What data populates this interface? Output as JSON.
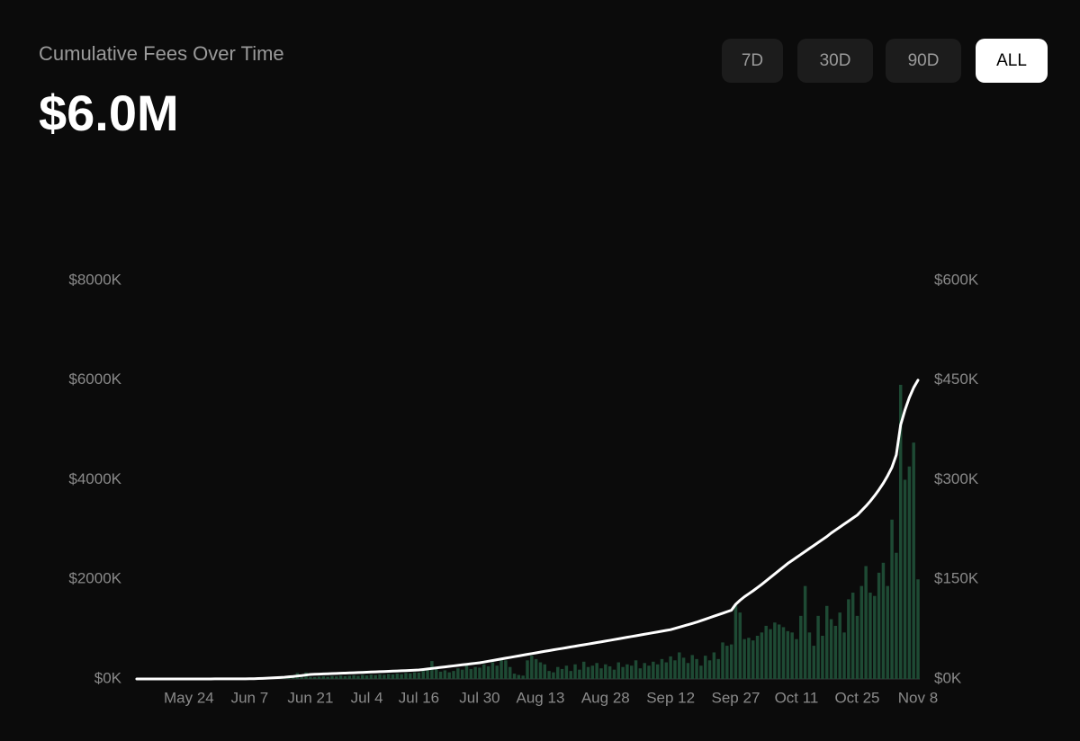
{
  "chart_data": {
    "type": "combo",
    "title": "Cumulative Fees Over Time",
    "headline": "$6.0M",
    "range_buttons": [
      "7D",
      "30D",
      "90D",
      "ALL"
    ],
    "selected_button": 3,
    "grid": false,
    "categories": [
      null,
      null,
      null,
      null,
      null,
      null,
      null,
      null,
      null,
      null,
      null,
      null,
      "May 24",
      null,
      null,
      null,
      null,
      null,
      null,
      null,
      null,
      null,
      null,
      null,
      null,
      null,
      "Jun 7",
      null,
      null,
      null,
      null,
      null,
      null,
      null,
      null,
      null,
      null,
      null,
      null,
      null,
      "Jun 21",
      null,
      null,
      null,
      null,
      null,
      null,
      null,
      null,
      null,
      null,
      null,
      null,
      "Jul 4",
      null,
      null,
      null,
      null,
      null,
      null,
      null,
      null,
      null,
      null,
      null,
      "Jul 16",
      null,
      null,
      null,
      null,
      null,
      null,
      null,
      null,
      null,
      null,
      null,
      null,
      null,
      "Jul 30",
      null,
      null,
      null,
      null,
      null,
      null,
      null,
      null,
      null,
      null,
      null,
      null,
      null,
      "Aug 13",
      null,
      null,
      null,
      null,
      null,
      null,
      null,
      null,
      null,
      null,
      null,
      null,
      null,
      null,
      "Aug 28",
      null,
      null,
      null,
      null,
      null,
      null,
      null,
      null,
      null,
      null,
      null,
      null,
      null,
      null,
      "Sep 12",
      null,
      null,
      null,
      null,
      null,
      null,
      null,
      null,
      null,
      null,
      null,
      null,
      null,
      null,
      "Sep 27",
      null,
      null,
      null,
      null,
      null,
      null,
      null,
      null,
      null,
      null,
      null,
      null,
      null,
      "Oct 11",
      null,
      null,
      null,
      null,
      null,
      null,
      null,
      null,
      null,
      null,
      null,
      null,
      null,
      "Oct 25",
      null,
      null,
      null,
      null,
      null,
      null,
      null,
      null,
      null,
      null,
      null,
      null,
      null,
      "Nov 8"
    ],
    "ylim": [
      0,
      8000
    ],
    "yticks": [
      {
        "value": 0,
        "label": "$0K"
      },
      {
        "value": 2000,
        "label": "$2000K"
      },
      {
        "value": 4000,
        "label": "$4000K"
      },
      {
        "value": 6000,
        "label": "$6000K"
      },
      {
        "value": 8000,
        "label": "$8000K"
      }
    ],
    "y2lim": [
      0,
      600
    ],
    "y2ticks": [
      {
        "value": 0,
        "label": "$0K"
      },
      {
        "value": 150,
        "label": "$150K"
      },
      {
        "value": 300,
        "label": "$300K"
      },
      {
        "value": 450,
        "label": "$450K"
      },
      {
        "value": 600,
        "label": "$600K"
      }
    ],
    "series": [
      {
        "type": "bar",
        "axis": "y2",
        "color": "#1e4a34",
        "values": [
          0.3,
          0.2,
          0.4,
          0.3,
          0.5,
          0.4,
          0.3,
          0.6,
          0.5,
          0.4,
          0.5,
          0.6,
          0.4,
          0.7,
          0.5,
          0.6,
          0.8,
          0.5,
          0.7,
          0.6,
          0.8,
          0.7,
          0.9,
          0.6,
          1,
          0.8,
          1.1,
          0.9,
          1.2,
          1,
          1.5,
          1.2,
          1.8,
          2,
          1.6,
          2.2,
          3,
          9,
          2.5,
          10,
          3,
          2.8,
          3.5,
          4,
          3.2,
          4.5,
          3.8,
          5,
          4.2,
          4.8,
          5.5,
          4.6,
          6,
          5.2,
          6.5,
          5.8,
          7,
          6.2,
          7.5,
          6.8,
          8,
          7.2,
          9,
          8.5,
          10,
          9.5,
          12,
          14,
          27,
          15,
          11,
          13,
          10,
          12,
          16,
          14,
          20,
          15,
          18,
          17,
          22,
          19,
          25,
          20,
          30,
          28,
          18,
          8,
          6,
          5,
          28,
          35,
          30,
          25,
          22,
          12,
          10,
          18,
          15,
          20,
          12,
          22,
          14,
          26,
          18,
          20,
          24,
          16,
          22,
          19,
          14,
          25,
          18,
          22,
          20,
          28,
          16,
          24,
          20,
          26,
          22,
          30,
          25,
          34,
          28,
          40,
          32,
          24,
          36,
          30,
          20,
          35,
          28,
          40,
          30,
          55,
          50,
          52,
          112,
          100,
          60,
          62,
          58,
          65,
          70,
          80,
          75,
          85,
          82,
          78,
          72,
          70,
          60,
          95,
          140,
          70,
          50,
          95,
          65,
          110,
          90,
          80,
          100,
          70,
          120,
          130,
          95,
          140,
          170,
          130,
          125,
          160,
          175,
          140,
          240,
          190,
          443,
          300,
          320,
          356,
          150
        ]
      },
      {
        "type": "line",
        "axis": "y",
        "color": "#ffffff",
        "values": [
          0,
          0,
          0,
          0,
          0,
          0,
          0,
          0,
          0,
          0,
          1,
          1,
          1,
          1,
          1,
          1,
          1,
          1,
          2,
          2,
          2,
          2,
          2,
          3,
          3,
          3,
          4,
          5,
          8,
          12,
          16,
          20,
          25,
          30,
          35,
          42,
          50,
          60,
          68,
          80,
          90,
          94,
          97,
          101,
          104,
          108,
          111,
          115,
          118,
          122,
          125,
          129,
          132,
          136,
          139,
          143,
          146,
          150,
          153,
          157,
          160,
          164,
          167,
          171,
          175,
          180,
          190,
          201,
          211,
          222,
          232,
          242,
          253,
          263,
          273,
          284,
          294,
          304,
          315,
          325,
          340,
          356,
          371,
          386,
          402,
          417,
          432,
          448,
          463,
          478,
          494,
          509,
          524,
          540,
          555,
          569,
          584,
          599,
          613,
          628,
          643,
          657,
          672,
          687,
          701,
          716,
          731,
          745,
          760,
          775,
          791,
          806,
          821,
          837,
          852,
          867,
          883,
          898,
          913,
          929,
          944,
          959,
          975,
          990,
          1015,
          1040,
          1065,
          1090,
          1115,
          1140,
          1170,
          1200,
          1230,
          1260,
          1290,
          1320,
          1350,
          1380,
          1500,
          1580,
          1650,
          1710,
          1770,
          1835,
          1900,
          1970,
          2040,
          2110,
          2180,
          2250,
          2320,
          2380,
          2440,
          2500,
          2560,
          2620,
          2680,
          2740,
          2800,
          2860,
          2930,
          2990,
          3050,
          3110,
          3170,
          3230,
          3290,
          3380,
          3470,
          3570,
          3680,
          3800,
          3930,
          4080,
          4250,
          4500,
          5100,
          5400,
          5650,
          5850,
          6000
        ]
      }
    ]
  }
}
